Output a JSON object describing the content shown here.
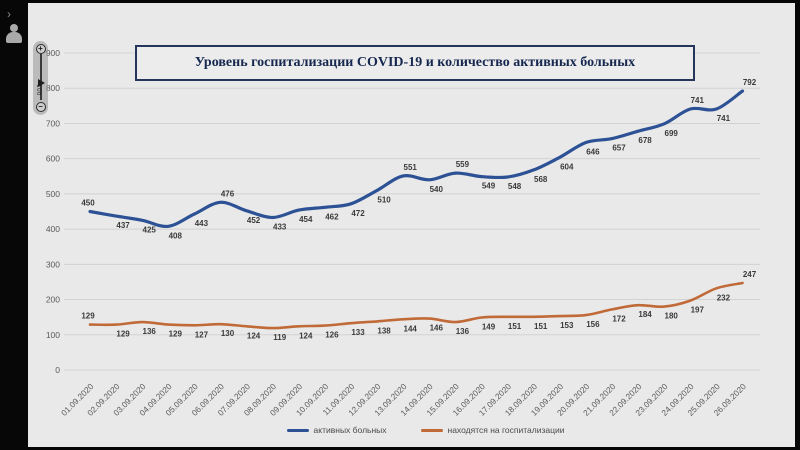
{
  "window": {
    "rail": {
      "chevron": "›"
    },
    "zoom_slider": {
      "value": "100",
      "plus_label": "+",
      "minus_label": "−"
    }
  },
  "chart_data": {
    "type": "line",
    "title": "Уровень госпитализации COVID-19 и количество активных больных",
    "categories": [
      "01.09.2020",
      "02.09.2020",
      "03.09.2020",
      "04.09.2020",
      "05.09.2020",
      "06.09.2020",
      "07.09.2020",
      "08.09.2020",
      "09.09.2020",
      "10.09.2020",
      "11.09.2020",
      "12.09.2020",
      "13.09.2020",
      "14.09.2020",
      "15.09.2020",
      "16.09.2020",
      "17.09.2020",
      "18.09.2020",
      "19.09.2020",
      "20.09.2020",
      "21.09.2020",
      "22.09.2020",
      "23.09.2020",
      "24.09.2020",
      "25.09.2020",
      "26.09.2020"
    ],
    "series": [
      {
        "name": "активных больных",
        "color": "#2c5194",
        "values": [
          450,
          437,
          425,
          408,
          443,
          476,
          452,
          433,
          454,
          462,
          472,
          510,
          551,
          540,
          559,
          549,
          548,
          568,
          604,
          646,
          657,
          678,
          699,
          741,
          741,
          792
        ]
      },
      {
        "name": "находятся на госпитализации",
        "color": "#c06a38",
        "values": [
          129,
          129,
          136,
          129,
          127,
          130,
          124,
          119,
          124,
          126,
          133,
          138,
          144,
          146,
          136,
          149,
          151,
          151,
          153,
          156,
          172,
          184,
          180,
          197,
          232,
          247
        ]
      }
    ],
    "xlabel": "",
    "ylabel": "",
    "ylim": [
      0,
      900
    ],
    "yticks": [
      0,
      100,
      200,
      300,
      400,
      500,
      600,
      700,
      800,
      900
    ],
    "grid": true,
    "legend_position": "bottom",
    "colors": {
      "plot_bg": "#e9e9e9",
      "gridline": "#d2d2d2",
      "axis_text": "#5a5a5a",
      "data_label": "#3a3a3a"
    }
  }
}
